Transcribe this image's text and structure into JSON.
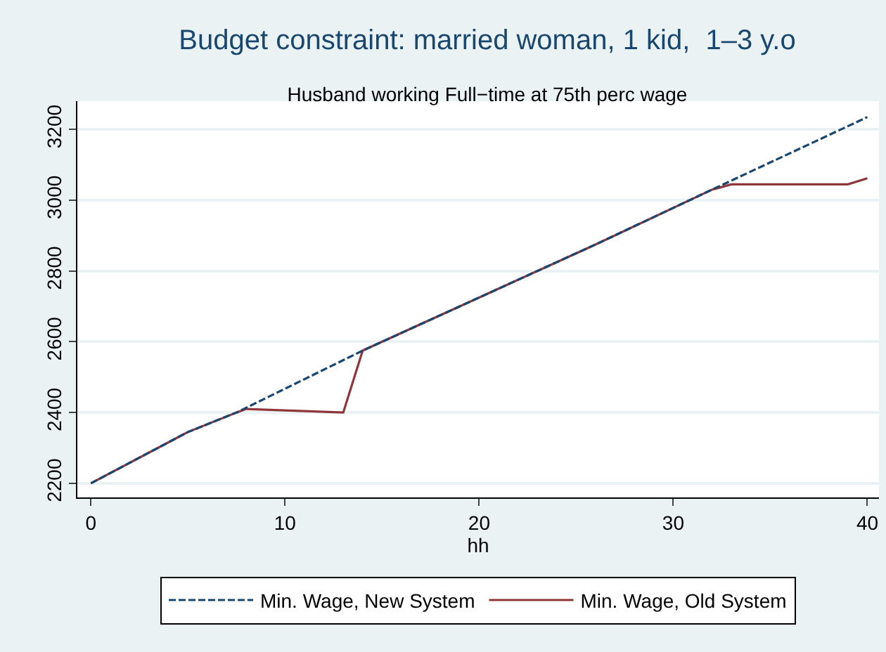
{
  "chart_data": {
    "type": "line",
    "title": "Budget constraint: married woman, 1 kid,  1–3 y.o",
    "subtitle": "Husband working Full−time at 75th perc wage",
    "xlabel": "hh",
    "series": [
      {
        "name": "Min. Wage, New System",
        "color": "#1a476f",
        "line_style": "dashed",
        "x": [
          0,
          5,
          7.5,
          14,
          20,
          26,
          32,
          40
        ],
        "values": [
          2200,
          2345,
          2400,
          2575,
          2725,
          2875,
          3030,
          3235
        ]
      },
      {
        "name": "Min. Wage, Old System",
        "color": "#90353b",
        "line_style": "solid",
        "x": [
          0,
          5,
          7.5,
          8,
          13,
          14,
          20,
          26,
          32,
          33,
          39,
          40
        ],
        "values": [
          2200,
          2345,
          2400,
          2410,
          2400,
          2575,
          2725,
          2875,
          3030,
          3045,
          3045,
          3062
        ]
      }
    ],
    "xlim": [
      -0.7,
      40.6
    ],
    "xticks": [
      0,
      10,
      20,
      30,
      40
    ],
    "ylim": [
      2160,
      3280
    ],
    "yticks": [
      2200,
      2400,
      2600,
      2800,
      3000,
      3200
    ],
    "grid": "y",
    "legend": "bottom",
    "marker": "none"
  }
}
